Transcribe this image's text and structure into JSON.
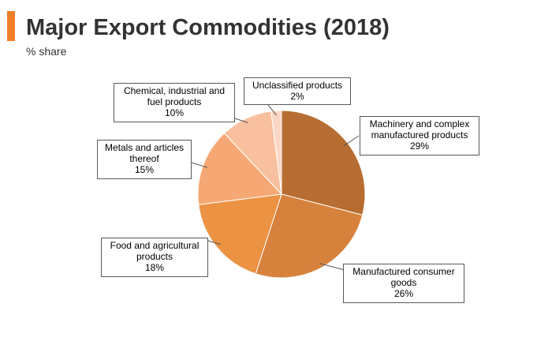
{
  "header": {
    "title": "Major Export Commodities (2018)",
    "subtitle": "% share",
    "accent_color": "#F07D29"
  },
  "chart_data": {
    "type": "pie",
    "title": "Major Export Commodities (2018)",
    "subtitle": "% share",
    "slices": [
      {
        "label": "Machinery and complex manufactured products",
        "label_lines": [
          "Machinery and complex",
          "manufactured products"
        ],
        "value": 29,
        "value_label": "29%",
        "color": "#B76D31"
      },
      {
        "label": "Manufactured consumer goods",
        "label_lines": [
          "Manufactured consumer",
          "goods"
        ],
        "value": 26,
        "value_label": "26%",
        "color": "#D7823C"
      },
      {
        "label": "Food and agricultural products",
        "label_lines": [
          "Food and agricultural",
          "products"
        ],
        "value": 18,
        "value_label": "18%",
        "color": "#EC9243"
      },
      {
        "label": "Metals and articles thereof",
        "label_lines": [
          "Metals and articles",
          "thereof"
        ],
        "value": 15,
        "value_label": "15%",
        "color": "#F6A874"
      },
      {
        "label": "Chemical, industrial and fuel products",
        "label_lines": [
          "Chemical, industrial and",
          "fuel products"
        ],
        "value": 10,
        "value_label": "10%",
        "color": "#F8C09E"
      },
      {
        "label": "Unclassified products",
        "label_lines": [
          "Unclassified products"
        ],
        "value": 2,
        "value_label": "2%",
        "color": "#FAD7C6"
      }
    ],
    "start_angle": "12 o'clock",
    "direction": "clockwise",
    "legend": "none",
    "labels": "callouts"
  }
}
